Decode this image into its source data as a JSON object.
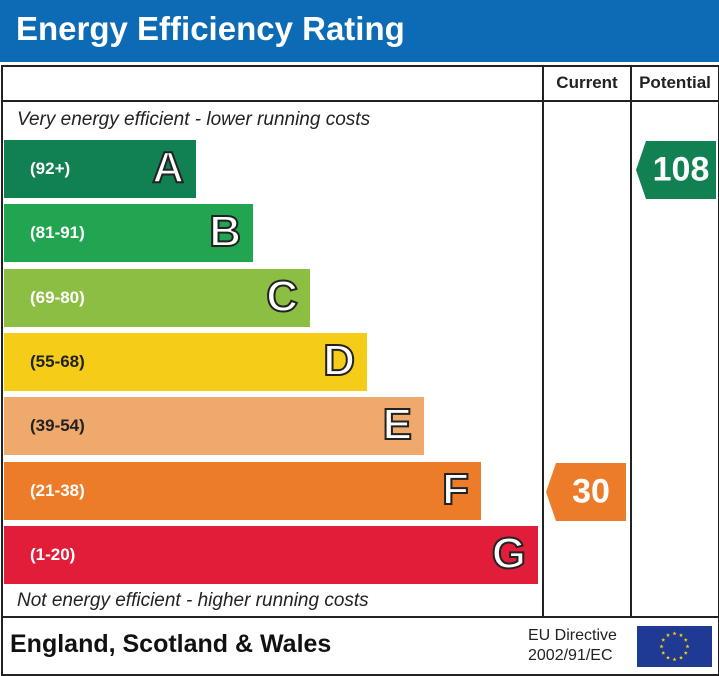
{
  "title": "Energy Efficiency Rating",
  "columns": {
    "current": "Current",
    "potential": "Potential"
  },
  "notes": {
    "top": "Very energy efficient - lower running costs",
    "bottom": "Not energy efficient - higher running costs"
  },
  "footer": {
    "country": "England, Scotland & Wales",
    "directive_line1": "EU Directive",
    "directive_line2": "2002/91/EC",
    "flag_icon": "eu-flag-icon"
  },
  "chart_data": {
    "type": "bar",
    "categories": [
      "A",
      "B",
      "C",
      "D",
      "E",
      "F",
      "G"
    ],
    "ranges": [
      "(92+)",
      "(81-91)",
      "(69-80)",
      "(55-68)",
      "(39-54)",
      "(21-38)",
      "(1-20)"
    ],
    "colors": [
      "#128152",
      "#21a550",
      "#8dbe44",
      "#f5cd18",
      "#f0a96c",
      "#ec7c2a",
      "#e11d3a"
    ],
    "current": {
      "value": 30,
      "band": "F",
      "color": "#ec7c2a"
    },
    "potential": {
      "value": 108,
      "band": "A",
      "color": "#128152"
    }
  }
}
